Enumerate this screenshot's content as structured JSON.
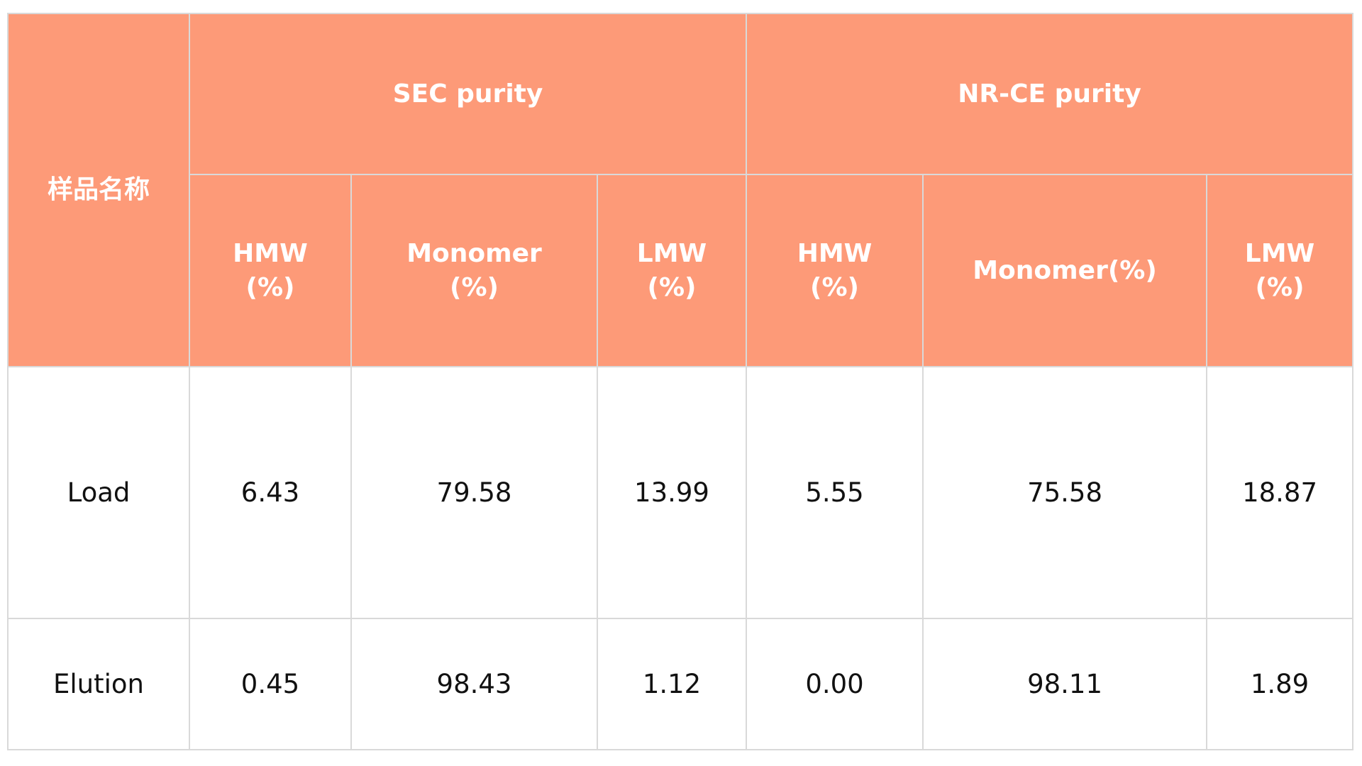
{
  "table": {
    "header": {
      "sample_name": "样品名称",
      "groups": [
        "SEC  purity",
        "NR-CE purity"
      ],
      "columns": [
        "HMW\n(%)",
        "Monomer\n(%)",
        "LMW\n(%)",
        "HMW\n(%)",
        "Monomer(%)",
        "LMW\n(%)"
      ]
    },
    "rows": [
      [
        "Load",
        "6.43",
        "79.58",
        "13.99",
        "5.55",
        "75.58",
        "18.87"
      ],
      [
        "Elution",
        "0.45",
        "98.43",
        "1.12",
        "0.00",
        "98.11",
        "1.89"
      ]
    ]
  }
}
